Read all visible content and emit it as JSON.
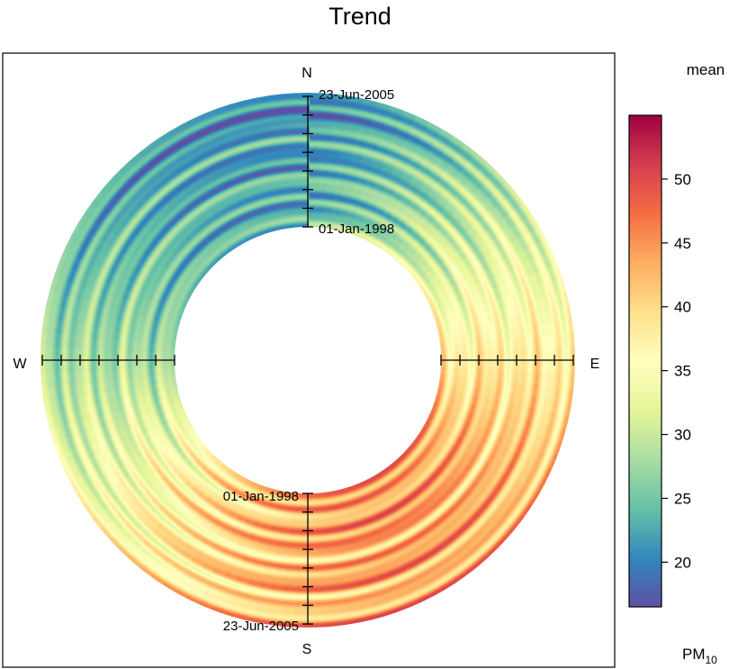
{
  "chart_data": {
    "type": "heatmap",
    "subtype": "polar-annulus",
    "title": "Trend",
    "statistic": "mean",
    "pollutant": {
      "base": "PM",
      "subscript": "10"
    },
    "directions": {
      "north": "N",
      "east": "E",
      "south": "S",
      "west": "W"
    },
    "time_axis": {
      "start": "01-Jan-1998",
      "end": "23-Jun-2005"
    },
    "color_scale": {
      "min": 16.5,
      "max": 55,
      "ticks": [
        "20",
        "25",
        "30",
        "35",
        "40",
        "45",
        "50"
      ],
      "palette": [
        "#5E4FA2",
        "#3288BD",
        "#66C2A5",
        "#ABDDA4",
        "#E6F598",
        "#FFFFBF",
        "#FEE08B",
        "#FDAE61",
        "#F46D43",
        "#D53E4F",
        "#9E0142"
      ]
    },
    "grid": false,
    "legend_position": "right"
  }
}
